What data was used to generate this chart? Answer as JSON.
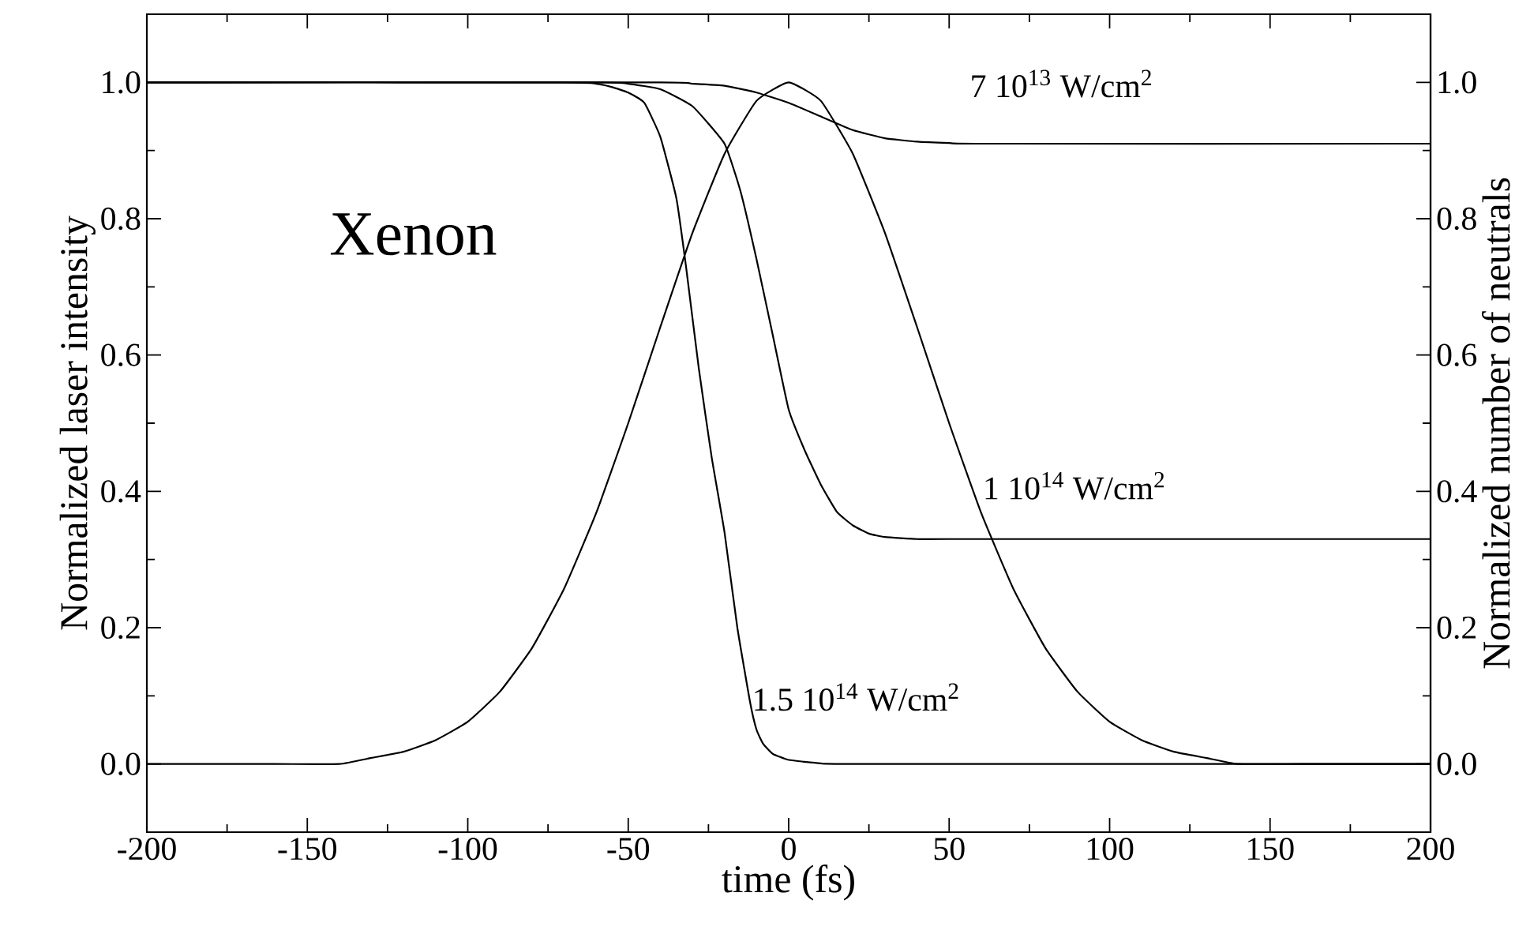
{
  "chart_data": {
    "type": "line",
    "xlabel": "time (fs)",
    "ylabel": "Normalized laser intensity",
    "y2label": "Normalized number of neutrals",
    "annotations": [
      "Xenon"
    ],
    "xlim": [
      -200,
      200
    ],
    "xticks": [
      -200,
      -150,
      -100,
      -50,
      0,
      50,
      100,
      150,
      200
    ],
    "ylim": [
      -0.1,
      1.1
    ],
    "yticks": [
      {
        "value": 0,
        "label": "0.0"
      },
      0.2,
      0.4,
      0.6,
      0.8,
      {
        "value": 1,
        "label": "1.0"
      }
    ],
    "y2lim": [
      -0.1,
      1.1
    ],
    "y2ticks": [
      {
        "value": 0,
        "label": "0.0"
      },
      0.2,
      0.4,
      0.6,
      0.8,
      {
        "value": 1,
        "label": "1.0"
      }
    ],
    "grid": false,
    "legend": false,
    "marker": "none",
    "line_style": "solid",
    "series": [
      {
        "color": "#000000",
        "x": [
          -200,
          -160,
          -140,
          -130,
          -120,
          -110,
          -100,
          -90,
          -80,
          -70,
          -60,
          -50,
          -40,
          -30,
          -20,
          -10,
          0,
          10,
          20,
          30,
          40,
          50,
          60,
          70,
          80,
          90,
          100,
          110,
          120,
          130,
          140,
          160,
          200
        ],
        "values": [
          0,
          0,
          0,
          0.009,
          0.018,
          0.035,
          0.062,
          0.106,
          0.17,
          0.257,
          0.368,
          0.5,
          0.641,
          0.779,
          0.895,
          0.973,
          1,
          0.973,
          0.895,
          0.779,
          0.641,
          0.5,
          0.368,
          0.257,
          0.17,
          0.106,
          0.062,
          0.035,
          0.018,
          0.009,
          0,
          0,
          0
        ]
      },
      {
        "name": "7 10$^{13}$ W/cm$^{2}$",
        "color": "#000000",
        "axis": "y2",
        "x": [
          -200,
          -40,
          -30,
          -20,
          -10,
          0,
          10,
          20,
          30,
          40,
          50,
          60,
          200
        ],
        "values": [
          1,
          1,
          0.998,
          0.995,
          0.985,
          0.97,
          0.95,
          0.93,
          0.918,
          0.913,
          0.911,
          0.91,
          0.91
        ]
      },
      {
        "name": "1 10$^{14}$ W/cm$^{2}$",
        "color": "#000000",
        "axis": "y2",
        "x": [
          -200,
          -60,
          -50,
          -40,
          -30,
          -20,
          -15,
          -10,
          -5,
          0,
          5,
          10,
          15,
          20,
          25,
          30,
          40,
          50,
          200
        ],
        "values": [
          1,
          1,
          0.998,
          0.99,
          0.965,
          0.91,
          0.84,
          0.74,
          0.63,
          0.52,
          0.46,
          0.41,
          0.37,
          0.35,
          0.338,
          0.333,
          0.33,
          0.33,
          0.33
        ]
      },
      {
        "name": "1.5 10$^{14}$ W/cm$^{2}$",
        "color": "#000000",
        "axis": "y2",
        "x": [
          -200,
          -70,
          -60,
          -55,
          -50,
          -45,
          -40,
          -35,
          -32,
          -28,
          -24,
          -20,
          -16,
          -12,
          -10,
          -8,
          -5,
          0,
          10,
          20,
          200
        ],
        "values": [
          1,
          1,
          0.998,
          0.993,
          0.985,
          0.97,
          0.92,
          0.83,
          0.73,
          0.58,
          0.45,
          0.34,
          0.2,
          0.09,
          0.05,
          0.03,
          0.015,
          0.006,
          0.001,
          0,
          0
        ]
      }
    ]
  }
}
